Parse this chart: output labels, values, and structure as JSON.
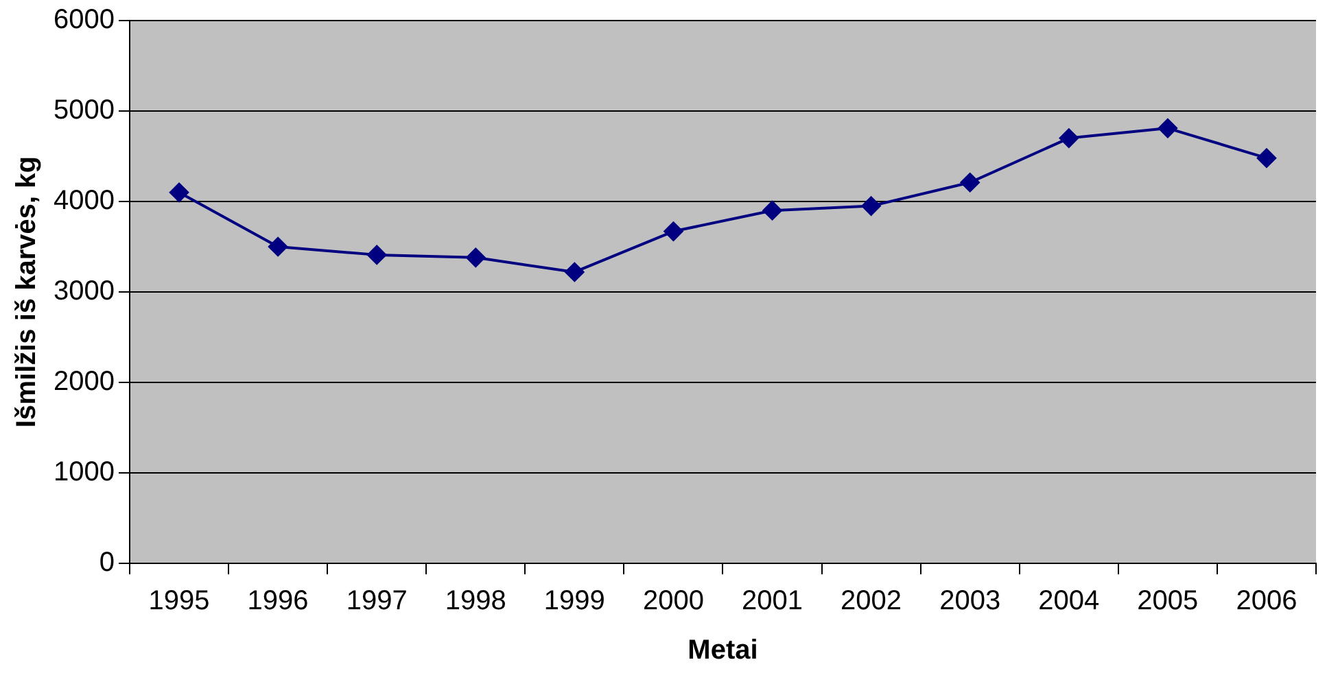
{
  "chart_data": {
    "type": "line",
    "xlabel": "Metai",
    "ylabel": "Išmilžis iš karvės, kg",
    "categories": [
      "1995",
      "1996",
      "1997",
      "1998",
      "1999",
      "2000",
      "2001",
      "2002",
      "2003",
      "2004",
      "2005",
      "2006"
    ],
    "series": [
      {
        "color": "#000080",
        "values": [
          4100,
          3500,
          3410,
          3380,
          3220,
          3670,
          3900,
          3950,
          4210,
          4700,
          4810,
          4480
        ]
      }
    ],
    "ylim": [
      0,
      6000
    ],
    "yticks": [
      0,
      1000,
      2000,
      3000,
      4000,
      5000,
      6000
    ],
    "grid": "y",
    "legend": false,
    "marker": "diamond",
    "line_style": "solid"
  }
}
